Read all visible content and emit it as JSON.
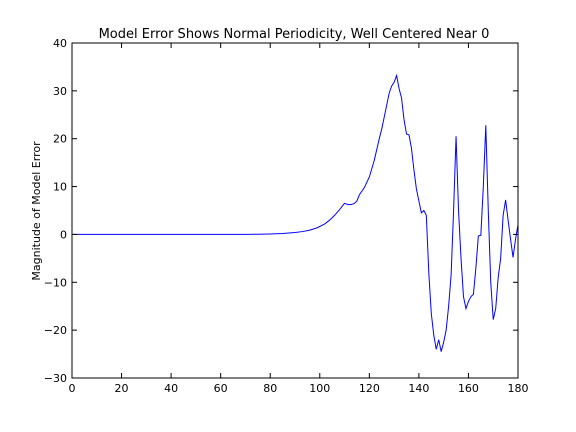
{
  "chart_data": {
    "type": "line",
    "title": "Model Error Shows Normal Periodicity, Well Centered Near 0",
    "xlabel": "",
    "ylabel": "Magnitude of Model Error",
    "xlim": [
      0,
      180
    ],
    "ylim": [
      -30,
      40
    ],
    "xticks": [
      "0",
      "20",
      "40",
      "60",
      "80",
      "100",
      "120",
      "140",
      "160",
      "180"
    ],
    "yticks": [
      "−30",
      "−20",
      "−10",
      "0",
      "10",
      "20",
      "30",
      "40"
    ],
    "grid": false,
    "line_color": "#0000ff",
    "series": [
      {
        "x": [
          0,
          10,
          20,
          30,
          40,
          50,
          60,
          70,
          75,
          80,
          85,
          90,
          93,
          96,
          99,
          102,
          104,
          106,
          108,
          110,
          111,
          112,
          113,
          114,
          115,
          116,
          118,
          120,
          122,
          124,
          125,
          126,
          127,
          128,
          129,
          130,
          131,
          132,
          133,
          134,
          135,
          136,
          137,
          138,
          139,
          140,
          141,
          142,
          143,
          144,
          145,
          146,
          147,
          148,
          149,
          150,
          151,
          152,
          153,
          154,
          155,
          156,
          157,
          158,
          159,
          160,
          161,
          162,
          163,
          164,
          165,
          166,
          167,
          168,
          169,
          170,
          171,
          172,
          173,
          174,
          175,
          176,
          177,
          178,
          179,
          180
        ],
        "y": [
          0,
          0,
          0,
          0,
          0,
          0,
          0,
          0,
          0.05,
          0.1,
          0.2,
          0.4,
          0.6,
          0.9,
          1.4,
          2.2,
          3.0,
          4.0,
          5.2,
          6.5,
          6.3,
          6.2,
          6.3,
          6.5,
          7.0,
          8.3,
          9.8,
          12.0,
          15.5,
          20.0,
          22.0,
          24.5,
          27.0,
          29.5,
          31.0,
          31.8,
          33.2,
          30.5,
          28.5,
          24.0,
          21.0,
          20.8,
          18.0,
          13.5,
          9.5,
          7.0,
          4.5,
          5.0,
          4.0,
          -8.0,
          -16.5,
          -21.0,
          -24.0,
          -22.0,
          -24.5,
          -22.5,
          -20.0,
          -15.0,
          -8.5,
          5.0,
          20.5,
          5.0,
          -5.0,
          -13.0,
          -15.5,
          -14.0,
          -13.0,
          -12.5,
          -7.0,
          -0.3,
          -0.2,
          10.0,
          22.8,
          5.0,
          -10.0,
          -17.8,
          -15.5,
          -9.0,
          -5.0,
          4.0,
          7.2,
          3.0,
          -1.0,
          -4.8,
          -1.0,
          2.0
        ]
      }
    ]
  }
}
